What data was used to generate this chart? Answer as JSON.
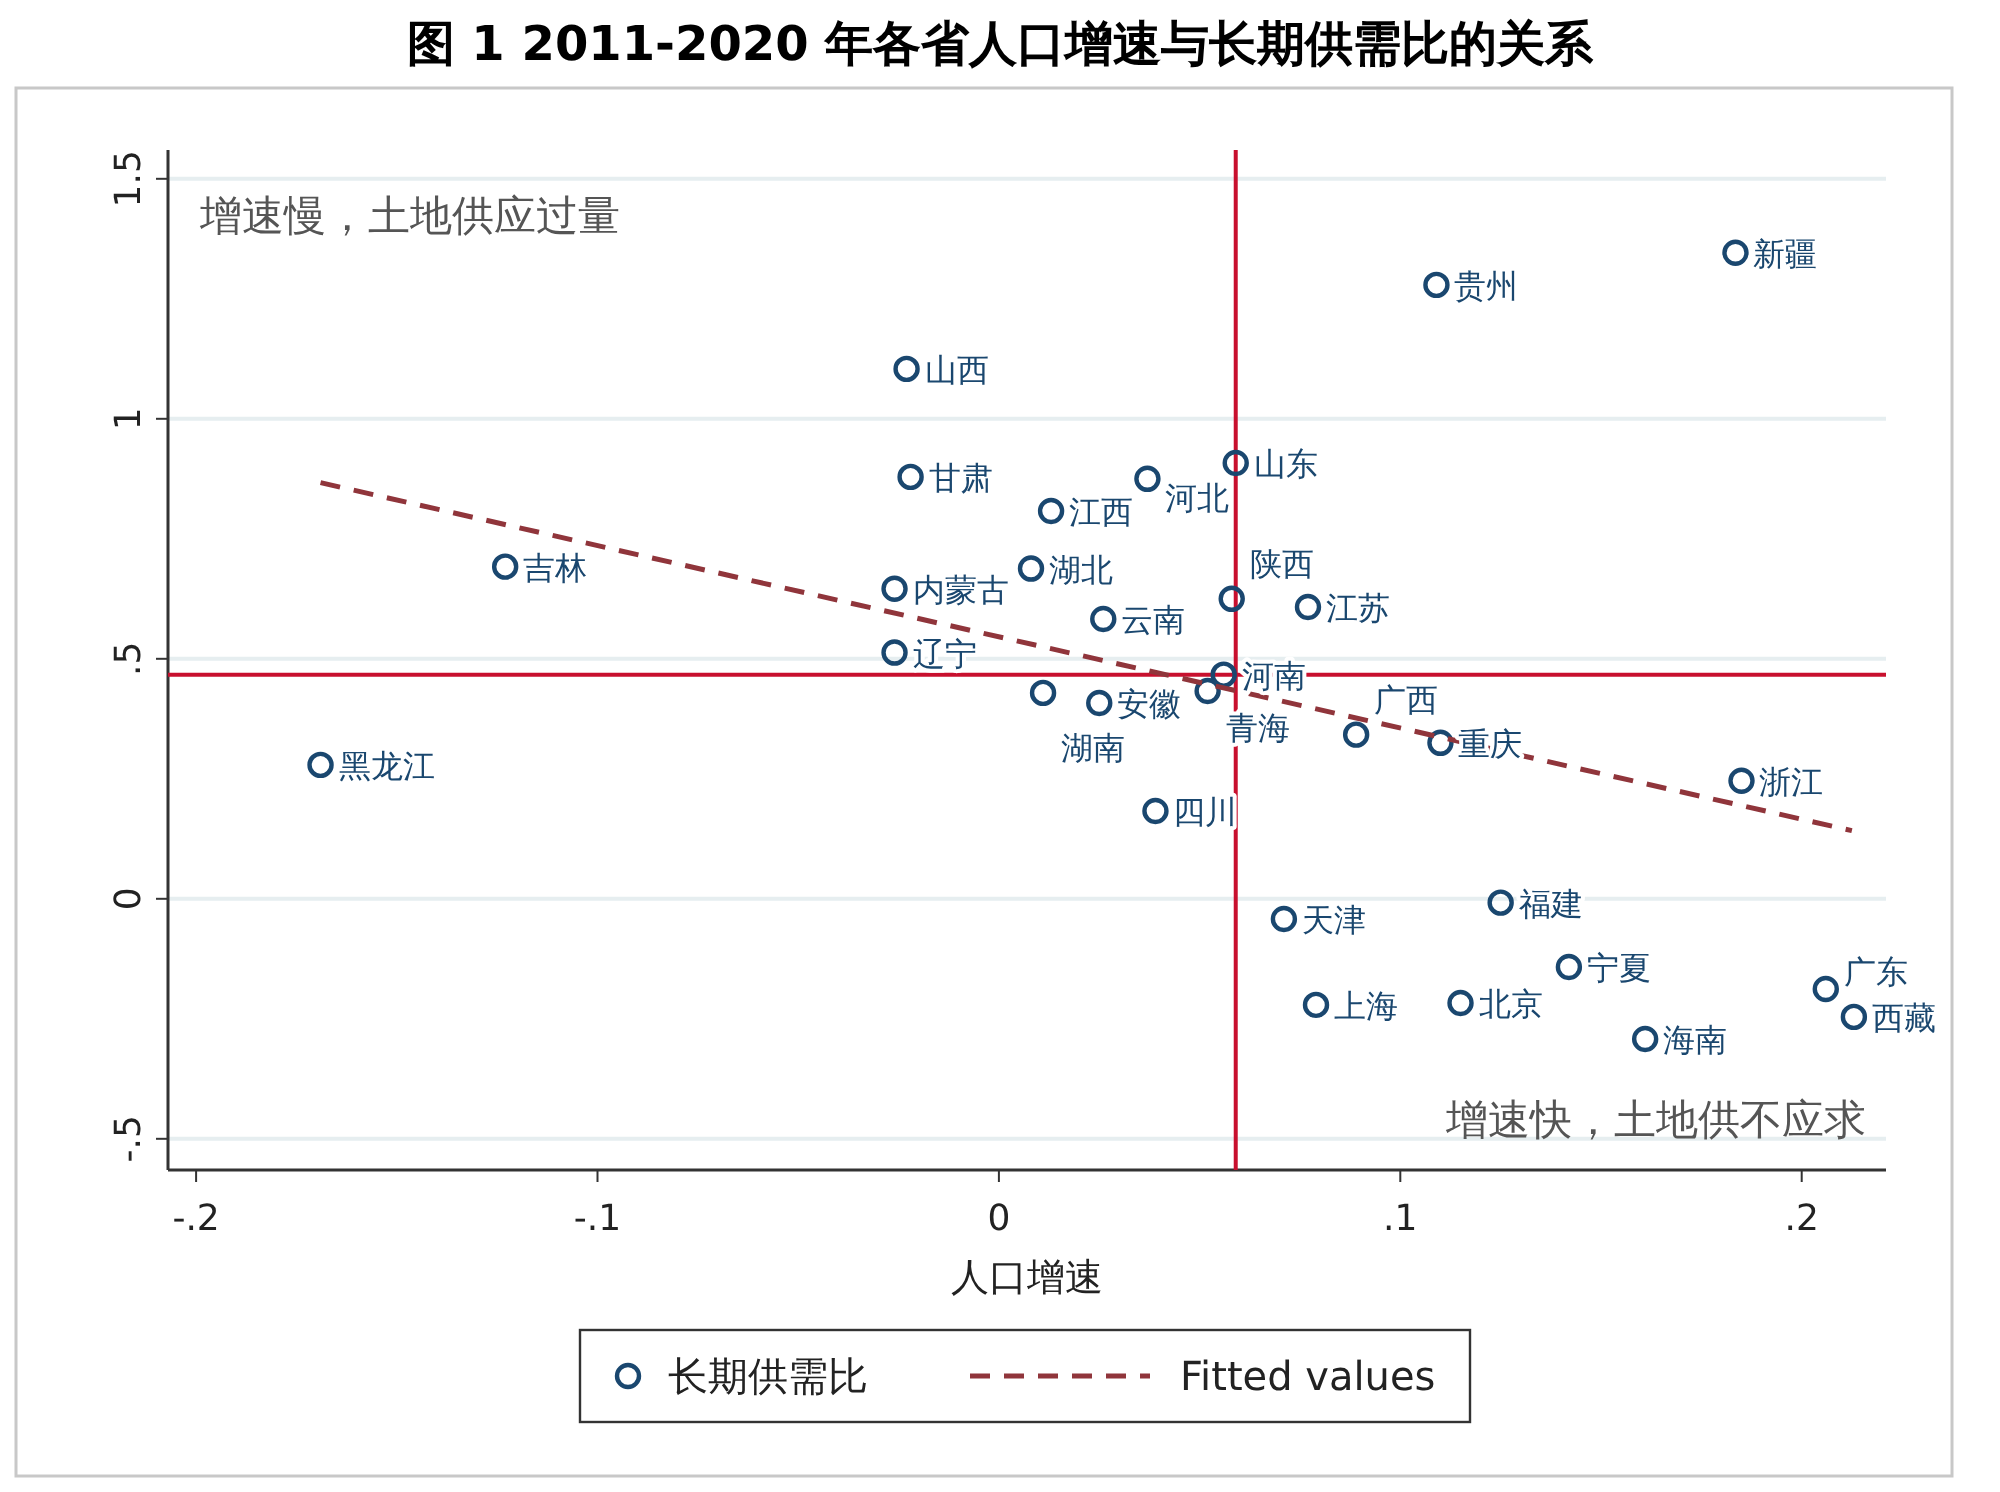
{
  "chart_data": {
    "type": "scatter",
    "title": "图 1 2011-2020 年各省人口增速与长期供需比的关系",
    "xlabel": "人口增速",
    "xlim": [
      -0.207,
      0.221
    ],
    "ylim": [
      -0.565,
      1.56
    ],
    "xticks": [
      {
        "value": -0.2,
        "label": "-.2"
      },
      {
        "value": -0.1,
        "label": "-.1"
      },
      {
        "value": 0,
        "label": "0"
      },
      {
        "value": 0.1,
        "label": ".1"
      },
      {
        "value": 0.2,
        "label": ".2"
      }
    ],
    "yticks": [
      {
        "value": -0.5,
        "label": "-.5"
      },
      {
        "value": 0,
        "label": "0"
      },
      {
        "value": 0.5,
        "label": ".5"
      },
      {
        "value": 1,
        "label": "1"
      },
      {
        "value": 1.5,
        "label": "1.5"
      }
    ],
    "grid": "y",
    "legend": "bottom",
    "series": [
      {
        "name": "长期供需比",
        "type": "scatter",
        "marker": "circle",
        "color": "#1a476f",
        "x": [
          0.1835,
          0.109,
          -0.023,
          -0.022,
          0.037,
          0.059,
          0.013,
          -0.123,
          0.008,
          -0.026,
          0.058,
          0.077,
          0.026,
          -0.026,
          0.056,
          0.052,
          0.011,
          0.025,
          0.089,
          0.11,
          -0.169,
          0.185,
          0.039,
          0.125,
          0.071,
          0.142,
          0.206,
          0.079,
          0.115,
          0.213,
          0.161
        ],
        "values": [
          1.346,
          1.279,
          1.104,
          0.879,
          0.875,
          0.908,
          0.808,
          0.692,
          0.688,
          0.646,
          0.625,
          0.608,
          0.583,
          0.513,
          0.467,
          0.433,
          0.429,
          0.408,
          0.342,
          0.325,
          0.279,
          0.246,
          0.183,
          -0.008,
          -0.042,
          -0.142,
          -0.188,
          -0.221,
          -0.217,
          -0.246,
          -0.292
        ]
      },
      {
        "name": "Fitted values",
        "type": "line",
        "line_style": "dashed",
        "color": "#90353b",
        "x": [
          -0.169,
          0.2125
        ],
        "values": [
          0.867,
          0.142
        ]
      }
    ],
    "ref_lines": [
      {
        "axis": "x",
        "value": 0.059,
        "color": "#c8102e"
      },
      {
        "axis": "y",
        "value": 0.467,
        "color": "#c8102e"
      }
    ],
    "annotations": [
      "增速慢，土地供应过量",
      "增速快，土地供不应求",
      {
        "text": "新疆",
        "x": 0.1835,
        "y": 1.346
      },
      {
        "text": "贵州",
        "x": 0.109,
        "y": 1.279
      },
      {
        "text": "山西",
        "x": -0.023,
        "y": 1.104
      },
      {
        "text": "甘肃",
        "x": -0.022,
        "y": 0.879
      },
      {
        "text": "河北",
        "x": 0.037,
        "y": 0.875
      },
      {
        "text": "山东",
        "x": 0.059,
        "y": 0.908
      },
      {
        "text": "江西",
        "x": 0.013,
        "y": 0.808
      },
      {
        "text": "吉林",
        "x": -0.123,
        "y": 0.692
      },
      {
        "text": "湖北",
        "x": 0.008,
        "y": 0.688
      },
      {
        "text": "内蒙古",
        "x": -0.026,
        "y": 0.646
      },
      {
        "text": "陕西",
        "x": 0.058,
        "y": 0.625
      },
      {
        "text": "江苏",
        "x": 0.077,
        "y": 0.608
      },
      {
        "text": "云南",
        "x": 0.026,
        "y": 0.583
      },
      {
        "text": "辽宁",
        "x": -0.026,
        "y": 0.513
      },
      {
        "text": "河南",
        "x": 0.056,
        "y": 0.467
      },
      {
        "text": "青海",
        "x": 0.052,
        "y": 0.433
      },
      {
        "text": "湖南",
        "x": 0.011,
        "y": 0.429
      },
      {
        "text": "安徽",
        "x": 0.025,
        "y": 0.408
      },
      {
        "text": "广西",
        "x": 0.089,
        "y": 0.342
      },
      {
        "text": "重庆",
        "x": 0.11,
        "y": 0.325
      },
      {
        "text": "黑龙江",
        "x": -0.169,
        "y": 0.279
      },
      {
        "text": "浙江",
        "x": 0.185,
        "y": 0.246
      },
      {
        "text": "四川",
        "x": 0.039,
        "y": 0.183
      },
      {
        "text": "福建",
        "x": 0.125,
        "y": -0.008
      },
      {
        "text": "天津",
        "x": 0.071,
        "y": -0.042
      },
      {
        "text": "宁夏",
        "x": 0.142,
        "y": -0.142
      },
      {
        "text": "广东",
        "x": 0.206,
        "y": -0.188
      },
      {
        "text": "上海",
        "x": 0.079,
        "y": -0.221
      },
      {
        "text": "北京",
        "x": 0.115,
        "y": -0.217
      },
      {
        "text": "西藏",
        "x": 0.213,
        "y": -0.246
      },
      {
        "text": "海南",
        "x": 0.161,
        "y": -0.292
      }
    ]
  }
}
